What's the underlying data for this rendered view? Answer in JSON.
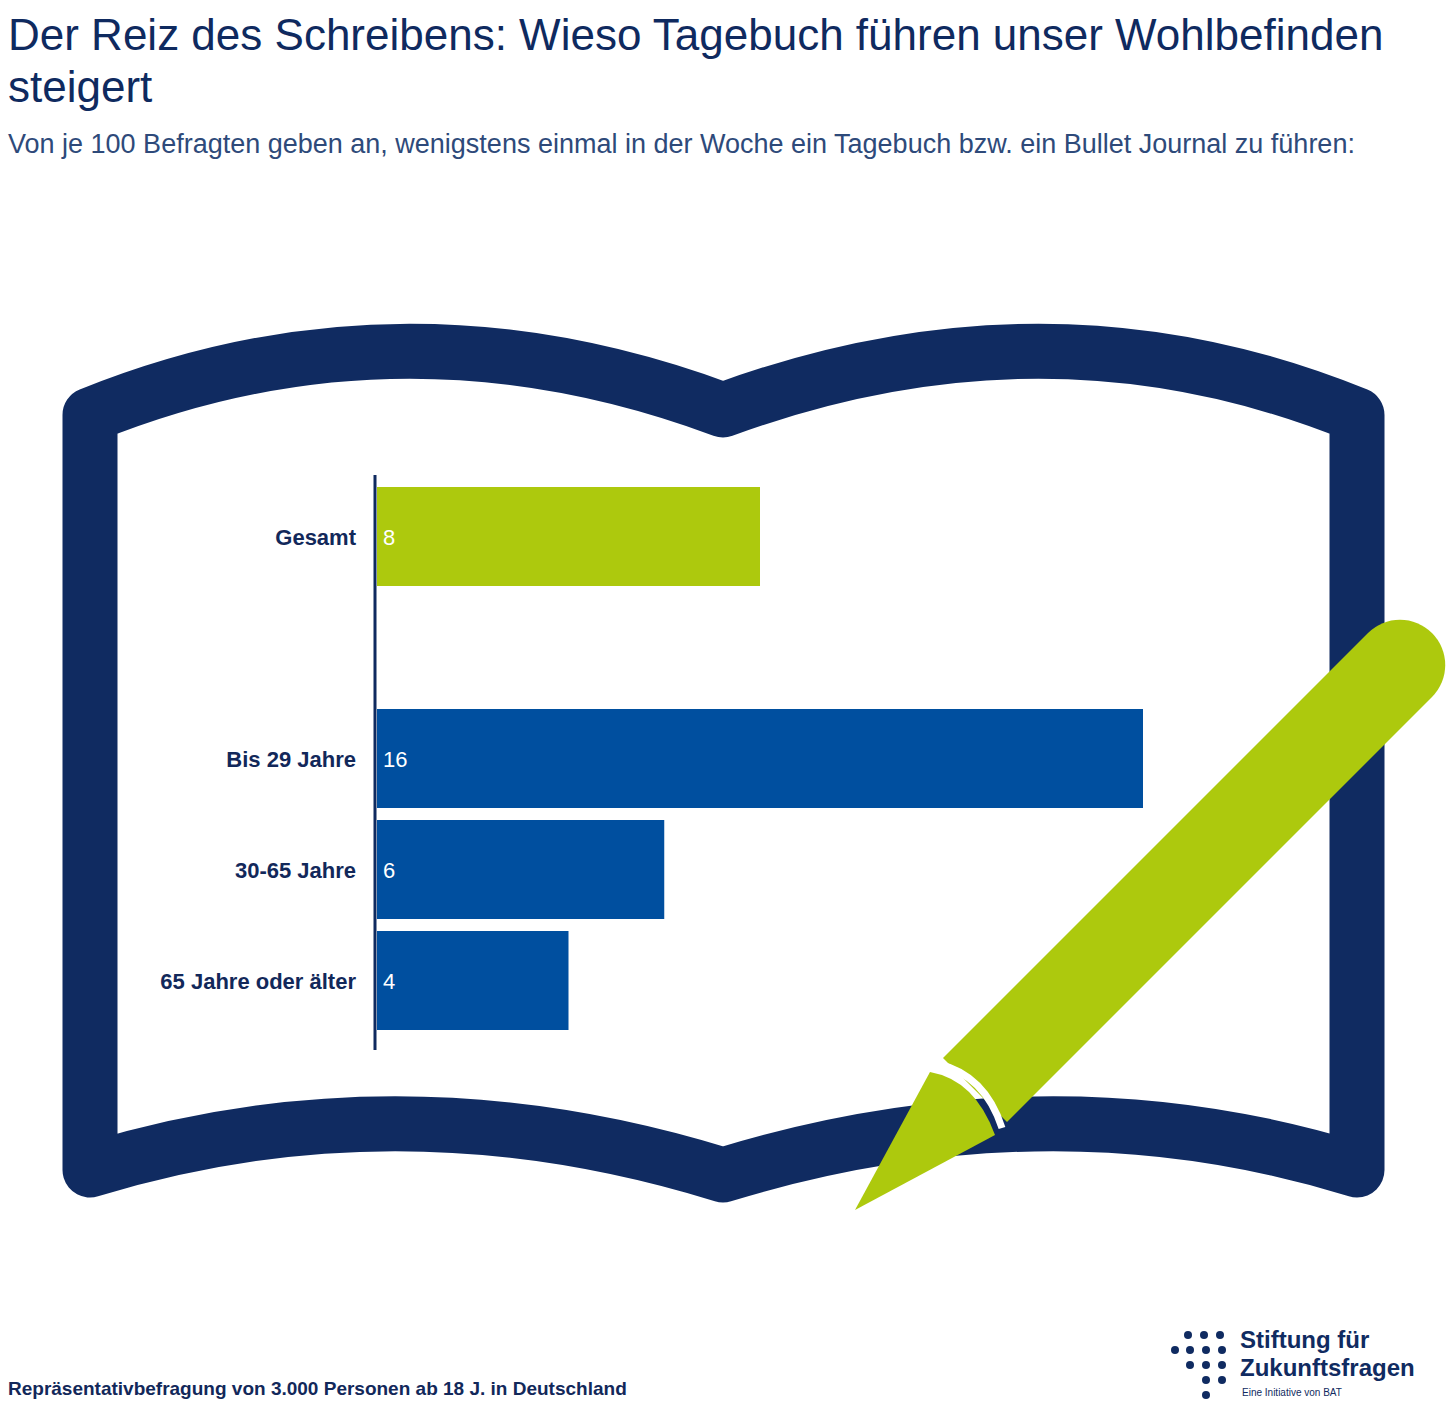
{
  "chart_data": {
    "type": "bar",
    "title": "Der Reiz des Schreibens: Wieso Tagebuch führen unser Wohlbefinden steigert",
    "subtitle": "Von je 100 Befragten geben an, wenigstens einmal in der Woche ein Tagebuch bzw. ein Bullet Journal zu führen:",
    "categories": [
      "Gesamt",
      "Bis 29 Jahre",
      "30-65 Jahre",
      "65 Jahre oder älter"
    ],
    "values": [
      8,
      16,
      6,
      4
    ],
    "colors": [
      "#adc90d",
      "#004f9f",
      "#004f9f",
      "#004f9f"
    ],
    "orientation": "horizontal",
    "data_labels": true,
    "tick_labels": "y",
    "grid": false,
    "xlim": [
      0,
      16
    ],
    "source": "Repräsentativbefragung von 3.000 Personen ab 18 J. in Deutschland",
    "logo": [
      "Stiftung für",
      "Zukunftsfragen",
      "Eine Initiative von BAT"
    ]
  }
}
